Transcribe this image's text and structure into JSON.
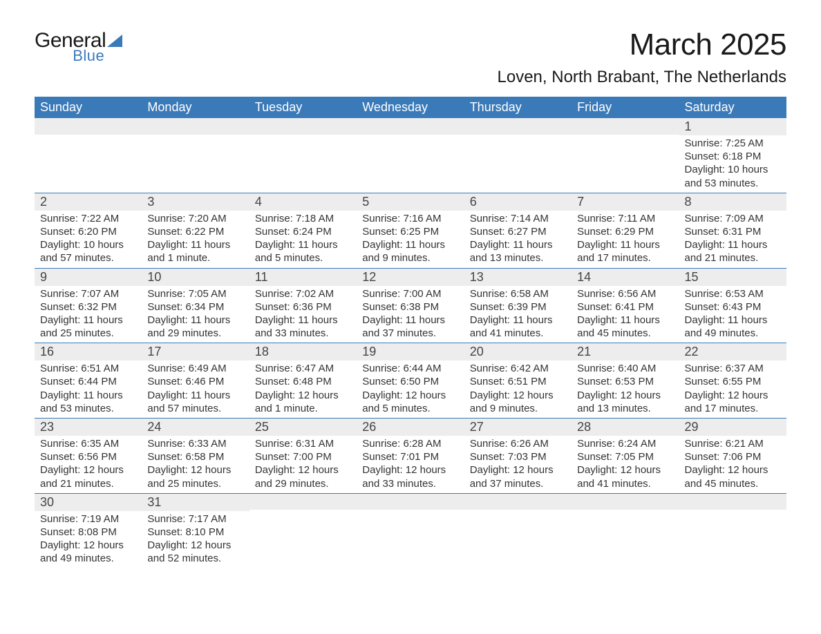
{
  "logo": {
    "line1": "General",
    "line2": "Blue"
  },
  "title": "March 2025",
  "location": "Loven, North Brabant, The Netherlands",
  "colors": {
    "header_bg": "#3b7ab8",
    "header_text": "#ffffff",
    "daynum_bg": "#ededed",
    "daynum_border": "#3b7ab8",
    "text": "#333333",
    "page_bg": "#ffffff"
  },
  "typography": {
    "title_fontsize": 44,
    "location_fontsize": 24,
    "dayheader_fontsize": 18,
    "daynum_fontsize": 18,
    "body_fontsize": 15
  },
  "layout": {
    "columns": 7,
    "rows": 6
  },
  "day_headers": [
    "Sunday",
    "Monday",
    "Tuesday",
    "Wednesday",
    "Thursday",
    "Friday",
    "Saturday"
  ],
  "weeks": [
    [
      {
        "day": "",
        "sunrise": "",
        "sunset": "",
        "daylight": ""
      },
      {
        "day": "",
        "sunrise": "",
        "sunset": "",
        "daylight": ""
      },
      {
        "day": "",
        "sunrise": "",
        "sunset": "",
        "daylight": ""
      },
      {
        "day": "",
        "sunrise": "",
        "sunset": "",
        "daylight": ""
      },
      {
        "day": "",
        "sunrise": "",
        "sunset": "",
        "daylight": ""
      },
      {
        "day": "",
        "sunrise": "",
        "sunset": "",
        "daylight": ""
      },
      {
        "day": "1",
        "sunrise": "Sunrise: 7:25 AM",
        "sunset": "Sunset: 6:18 PM",
        "daylight": "Daylight: 10 hours and 53 minutes."
      }
    ],
    [
      {
        "day": "2",
        "sunrise": "Sunrise: 7:22 AM",
        "sunset": "Sunset: 6:20 PM",
        "daylight": "Daylight: 10 hours and 57 minutes."
      },
      {
        "day": "3",
        "sunrise": "Sunrise: 7:20 AM",
        "sunset": "Sunset: 6:22 PM",
        "daylight": "Daylight: 11 hours and 1 minute."
      },
      {
        "day": "4",
        "sunrise": "Sunrise: 7:18 AM",
        "sunset": "Sunset: 6:24 PM",
        "daylight": "Daylight: 11 hours and 5 minutes."
      },
      {
        "day": "5",
        "sunrise": "Sunrise: 7:16 AM",
        "sunset": "Sunset: 6:25 PM",
        "daylight": "Daylight: 11 hours and 9 minutes."
      },
      {
        "day": "6",
        "sunrise": "Sunrise: 7:14 AM",
        "sunset": "Sunset: 6:27 PM",
        "daylight": "Daylight: 11 hours and 13 minutes."
      },
      {
        "day": "7",
        "sunrise": "Sunrise: 7:11 AM",
        "sunset": "Sunset: 6:29 PM",
        "daylight": "Daylight: 11 hours and 17 minutes."
      },
      {
        "day": "8",
        "sunrise": "Sunrise: 7:09 AM",
        "sunset": "Sunset: 6:31 PM",
        "daylight": "Daylight: 11 hours and 21 minutes."
      }
    ],
    [
      {
        "day": "9",
        "sunrise": "Sunrise: 7:07 AM",
        "sunset": "Sunset: 6:32 PM",
        "daylight": "Daylight: 11 hours and 25 minutes."
      },
      {
        "day": "10",
        "sunrise": "Sunrise: 7:05 AM",
        "sunset": "Sunset: 6:34 PM",
        "daylight": "Daylight: 11 hours and 29 minutes."
      },
      {
        "day": "11",
        "sunrise": "Sunrise: 7:02 AM",
        "sunset": "Sunset: 6:36 PM",
        "daylight": "Daylight: 11 hours and 33 minutes."
      },
      {
        "day": "12",
        "sunrise": "Sunrise: 7:00 AM",
        "sunset": "Sunset: 6:38 PM",
        "daylight": "Daylight: 11 hours and 37 minutes."
      },
      {
        "day": "13",
        "sunrise": "Sunrise: 6:58 AM",
        "sunset": "Sunset: 6:39 PM",
        "daylight": "Daylight: 11 hours and 41 minutes."
      },
      {
        "day": "14",
        "sunrise": "Sunrise: 6:56 AM",
        "sunset": "Sunset: 6:41 PM",
        "daylight": "Daylight: 11 hours and 45 minutes."
      },
      {
        "day": "15",
        "sunrise": "Sunrise: 6:53 AM",
        "sunset": "Sunset: 6:43 PM",
        "daylight": "Daylight: 11 hours and 49 minutes."
      }
    ],
    [
      {
        "day": "16",
        "sunrise": "Sunrise: 6:51 AM",
        "sunset": "Sunset: 6:44 PM",
        "daylight": "Daylight: 11 hours and 53 minutes."
      },
      {
        "day": "17",
        "sunrise": "Sunrise: 6:49 AM",
        "sunset": "Sunset: 6:46 PM",
        "daylight": "Daylight: 11 hours and 57 minutes."
      },
      {
        "day": "18",
        "sunrise": "Sunrise: 6:47 AM",
        "sunset": "Sunset: 6:48 PM",
        "daylight": "Daylight: 12 hours and 1 minute."
      },
      {
        "day": "19",
        "sunrise": "Sunrise: 6:44 AM",
        "sunset": "Sunset: 6:50 PM",
        "daylight": "Daylight: 12 hours and 5 minutes."
      },
      {
        "day": "20",
        "sunrise": "Sunrise: 6:42 AM",
        "sunset": "Sunset: 6:51 PM",
        "daylight": "Daylight: 12 hours and 9 minutes."
      },
      {
        "day": "21",
        "sunrise": "Sunrise: 6:40 AM",
        "sunset": "Sunset: 6:53 PM",
        "daylight": "Daylight: 12 hours and 13 minutes."
      },
      {
        "day": "22",
        "sunrise": "Sunrise: 6:37 AM",
        "sunset": "Sunset: 6:55 PM",
        "daylight": "Daylight: 12 hours and 17 minutes."
      }
    ],
    [
      {
        "day": "23",
        "sunrise": "Sunrise: 6:35 AM",
        "sunset": "Sunset: 6:56 PM",
        "daylight": "Daylight: 12 hours and 21 minutes."
      },
      {
        "day": "24",
        "sunrise": "Sunrise: 6:33 AM",
        "sunset": "Sunset: 6:58 PM",
        "daylight": "Daylight: 12 hours and 25 minutes."
      },
      {
        "day": "25",
        "sunrise": "Sunrise: 6:31 AM",
        "sunset": "Sunset: 7:00 PM",
        "daylight": "Daylight: 12 hours and 29 minutes."
      },
      {
        "day": "26",
        "sunrise": "Sunrise: 6:28 AM",
        "sunset": "Sunset: 7:01 PM",
        "daylight": "Daylight: 12 hours and 33 minutes."
      },
      {
        "day": "27",
        "sunrise": "Sunrise: 6:26 AM",
        "sunset": "Sunset: 7:03 PM",
        "daylight": "Daylight: 12 hours and 37 minutes."
      },
      {
        "day": "28",
        "sunrise": "Sunrise: 6:24 AM",
        "sunset": "Sunset: 7:05 PM",
        "daylight": "Daylight: 12 hours and 41 minutes."
      },
      {
        "day": "29",
        "sunrise": "Sunrise: 6:21 AM",
        "sunset": "Sunset: 7:06 PM",
        "daylight": "Daylight: 12 hours and 45 minutes."
      }
    ],
    [
      {
        "day": "30",
        "sunrise": "Sunrise: 7:19 AM",
        "sunset": "Sunset: 8:08 PM",
        "daylight": "Daylight: 12 hours and 49 minutes."
      },
      {
        "day": "31",
        "sunrise": "Sunrise: 7:17 AM",
        "sunset": "Sunset: 8:10 PM",
        "daylight": "Daylight: 12 hours and 52 minutes."
      },
      {
        "day": "",
        "sunrise": "",
        "sunset": "",
        "daylight": ""
      },
      {
        "day": "",
        "sunrise": "",
        "sunset": "",
        "daylight": ""
      },
      {
        "day": "",
        "sunrise": "",
        "sunset": "",
        "daylight": ""
      },
      {
        "day": "",
        "sunrise": "",
        "sunset": "",
        "daylight": ""
      },
      {
        "day": "",
        "sunrise": "",
        "sunset": "",
        "daylight": ""
      }
    ]
  ]
}
